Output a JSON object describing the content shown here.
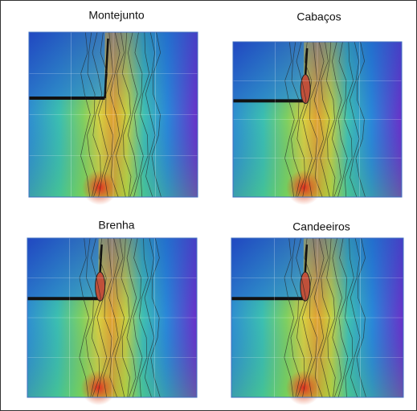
{
  "panels": [
    {
      "title": "Montejunto"
    },
    {
      "title": "Cabaços"
    },
    {
      "title": "Brenha"
    },
    {
      "title": "Candeeiros"
    }
  ]
}
